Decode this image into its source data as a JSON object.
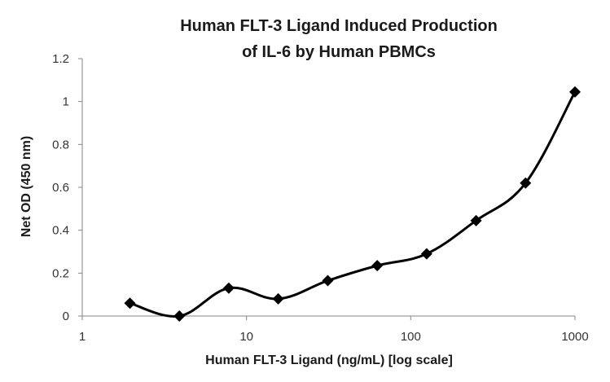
{
  "chart_data": {
    "type": "line",
    "title_lines": [
      "Human FLT-3 Ligand Induced Production",
      "of IL-6 by Human PBMCs"
    ],
    "xlabel": "Human FLT-3 Ligand (ng/mL) [log scale]",
    "ylabel": "Net OD (450 nm)",
    "x_scale": "log",
    "xlim": [
      1,
      1000
    ],
    "ylim": [
      0,
      1.2
    ],
    "x_ticks": [
      1,
      10,
      100,
      1000
    ],
    "x_tick_labels": [
      "1",
      "10",
      "100",
      "1000"
    ],
    "y_ticks": [
      0,
      0.2,
      0.4,
      0.6,
      0.8,
      1,
      1.2
    ],
    "y_tick_labels": [
      "0",
      "0.2",
      "0.4",
      "0.6",
      "0.8",
      "1",
      "1.2"
    ],
    "grid": false,
    "legend": "none",
    "series": [
      {
        "marker": "diamond",
        "smooth": true,
        "color": "#000000",
        "x": [
          1.95,
          3.9,
          7.8,
          15.6,
          31.25,
          62.5,
          125,
          250,
          500,
          1000
        ],
        "y": [
          0.06,
          0.0,
          0.13,
          0.08,
          0.165,
          0.235,
          0.29,
          0.445,
          0.62,
          1.045
        ]
      }
    ]
  }
}
